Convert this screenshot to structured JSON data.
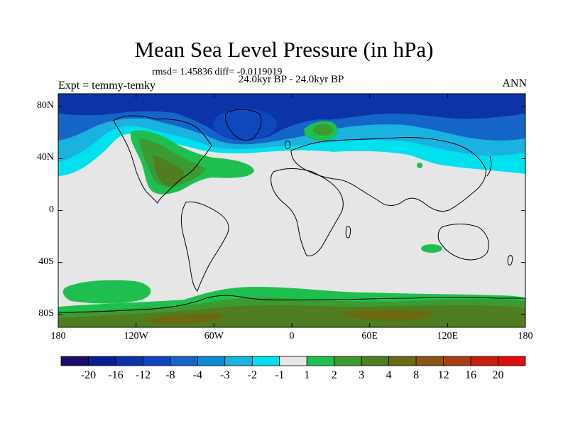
{
  "title": "Mean Sea Level Pressure (in hPa)",
  "stats": "rmsd= 1.45836  diff= -0.0119019",
  "period": "24.0kyr BP - 24.0kyr BP",
  "experiment": "Expt = temmy-temky",
  "season": "ANN",
  "lat_labels": [
    "80N",
    "40N",
    "0",
    "40S",
    "80S"
  ],
  "lon_labels": [
    "180",
    "120W",
    "60W",
    "0",
    "60E",
    "120E",
    "180"
  ],
  "colorbar": {
    "labels": [
      "-20",
      "-16",
      "-12",
      "-8",
      "-4",
      "-3",
      "-2",
      "-1",
      "1",
      "2",
      "3",
      "4",
      "8",
      "12",
      "16",
      "20"
    ],
    "colors": [
      "#1a0a6e",
      "#0a1f8f",
      "#0d33a8",
      "#0f48bd",
      "#1565c8",
      "#0d8ad6",
      "#1ab2e0",
      "#00e0ee",
      "#e6e6e6",
      "#1fbf4f",
      "#3c9a32",
      "#4f7d1f",
      "#6b6a12",
      "#8a5514",
      "#a83f12",
      "#c81e0e",
      "#e00c0c"
    ]
  },
  "colors": {
    "neutral": "#e6e6e6",
    "deep_blue": "#0d33a8",
    "mid_blue": "#1565c8",
    "light_blue": "#1ab2e0",
    "cyan": "#00e0ee",
    "green": "#1fbf4f",
    "dark_green": "#3c9a32",
    "olive": "#4f7d1f",
    "brown": "#6b6a12"
  }
}
